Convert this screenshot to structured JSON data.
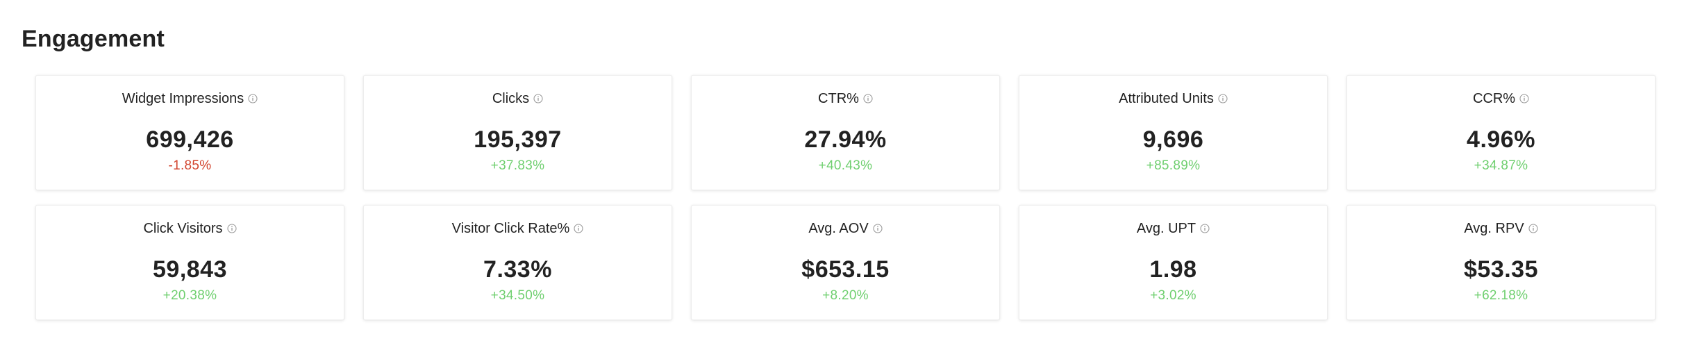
{
  "section": {
    "title": "Engagement"
  },
  "colors": {
    "positive": "#6fcf6f",
    "negative": "#d2452f",
    "text": "#222222"
  },
  "metrics": [
    {
      "label": "Widget Impressions",
      "value": "699,426",
      "change": "-1.85%",
      "direction": "down",
      "icon": "info-icon"
    },
    {
      "label": "Clicks",
      "value": "195,397",
      "change": "+37.83%",
      "direction": "up",
      "icon": "info-icon"
    },
    {
      "label": "CTR%",
      "value": "27.94%",
      "change": "+40.43%",
      "direction": "up",
      "icon": "info-icon"
    },
    {
      "label": "Attributed Units",
      "value": "9,696",
      "change": "+85.89%",
      "direction": "up",
      "icon": "info-icon"
    },
    {
      "label": "CCR%",
      "value": "4.96%",
      "change": "+34.87%",
      "direction": "up",
      "icon": "info-icon"
    },
    {
      "label": "Click Visitors",
      "value": "59,843",
      "change": "+20.38%",
      "direction": "up",
      "icon": "info-icon"
    },
    {
      "label": "Visitor Click Rate%",
      "value": "7.33%",
      "change": "+34.50%",
      "direction": "up",
      "icon": "info-icon"
    },
    {
      "label": "Avg. AOV",
      "value": "$653.15",
      "change": "+8.20%",
      "direction": "up",
      "icon": "info-icon"
    },
    {
      "label": "Avg. UPT",
      "value": "1.98",
      "change": "+3.02%",
      "direction": "up",
      "icon": "info-icon"
    },
    {
      "label": "Avg. RPV",
      "value": "$53.35",
      "change": "+62.18%",
      "direction": "up",
      "icon": "info-icon"
    }
  ]
}
